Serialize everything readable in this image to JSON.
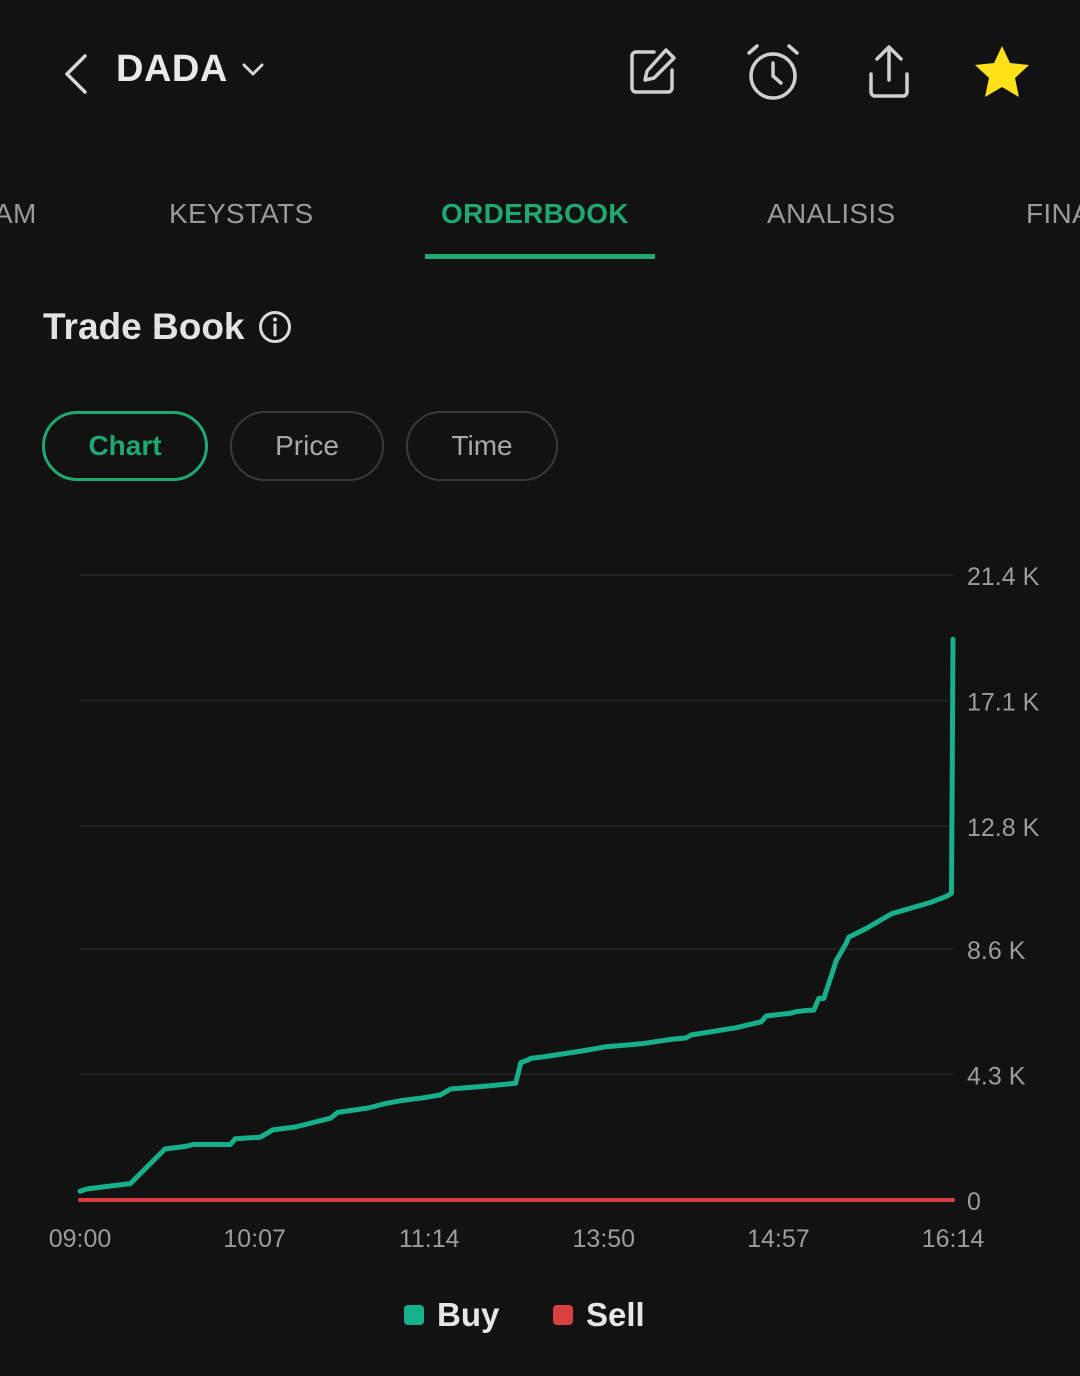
{
  "header": {
    "ticker": "DADA",
    "icons": [
      "back-icon",
      "chevron-down-icon",
      "edit-icon",
      "alarm-icon",
      "share-icon",
      "star-icon"
    ],
    "star_color": "#FFE11A"
  },
  "tabs": [
    {
      "label": "AM",
      "active": false
    },
    {
      "label": "KEYSTATS",
      "active": false
    },
    {
      "label": "ORDERBOOK",
      "active": true
    },
    {
      "label": "ANALISIS",
      "active": false
    },
    {
      "label": "FINA",
      "active": false
    }
  ],
  "section": {
    "title": "Trade Book"
  },
  "view_toggle": [
    {
      "label": "Chart",
      "active": true
    },
    {
      "label": "Price",
      "active": false
    },
    {
      "label": "Time",
      "active": false
    }
  ],
  "colors": {
    "accent": "#1FA971",
    "buy": "#17B08A",
    "sell": "#D9403F",
    "background": "#121212"
  },
  "chart_data": {
    "type": "line",
    "title": "",
    "xlabel": "",
    "ylabel": "",
    "x_ticks": [
      "09:00",
      "10:07",
      "11:14",
      "13:50",
      "14:57",
      "16:14"
    ],
    "y_ticks": [
      "0",
      "4.3 K",
      "8.6 K",
      "12.8 K",
      "17.1 K",
      "21.4 K"
    ],
    "y_tick_values": [
      0,
      4300,
      8600,
      12800,
      17100,
      21400
    ],
    "ylim": [
      0,
      21400
    ],
    "y_axis_side": "right",
    "grid": true,
    "legend_position": "bottom-center",
    "series": [
      {
        "name": "Buy",
        "color": "#17B08A",
        "x": [
          0.0,
          0.15,
          0.95,
          1.0,
          1.7,
          1.95,
          2.15,
          2.25,
          3.0,
          3.1,
          3.6,
          3.75,
          3.85,
          4.3,
          5.0,
          5.15,
          5.75,
          6.1,
          6.4,
          6.85,
          7.2,
          7.4,
          8.1,
          8.7,
          8.8,
          8.95,
          9.0,
          9.25,
          10.0,
          10.35,
          10.5,
          11.2,
          11.8,
          12.1,
          12.2,
          13.1,
          13.6,
          13.7,
          14.2,
          14.3,
          14.55,
          14.65,
          14.75,
          14.85,
          15.1,
          15.3,
          15.35,
          15.7,
          16.2,
          17.0,
          17.3,
          17.4,
          17.43
        ],
        "y": [
          300,
          380,
          550,
          550,
          1750,
          1800,
          1850,
          1900,
          1900,
          2100,
          2150,
          2300,
          2400,
          2500,
          2800,
          3000,
          3150,
          3300,
          3400,
          3500,
          3600,
          3800,
          3900,
          4000,
          4700,
          4800,
          4850,
          4900,
          5100,
          5200,
          5250,
          5350,
          5500,
          5550,
          5650,
          5900,
          6100,
          6300,
          6400,
          6450,
          6500,
          6500,
          6900,
          6900,
          8200,
          8800,
          9000,
          9300,
          9800,
          10200,
          10400,
          10500,
          19200
        ]
      },
      {
        "name": "Sell",
        "color": "#D9403F",
        "x": [
          0,
          17.43
        ],
        "y": [
          0,
          0
        ]
      }
    ]
  },
  "legend": {
    "buy_label": "Buy",
    "sell_label": "Sell"
  }
}
